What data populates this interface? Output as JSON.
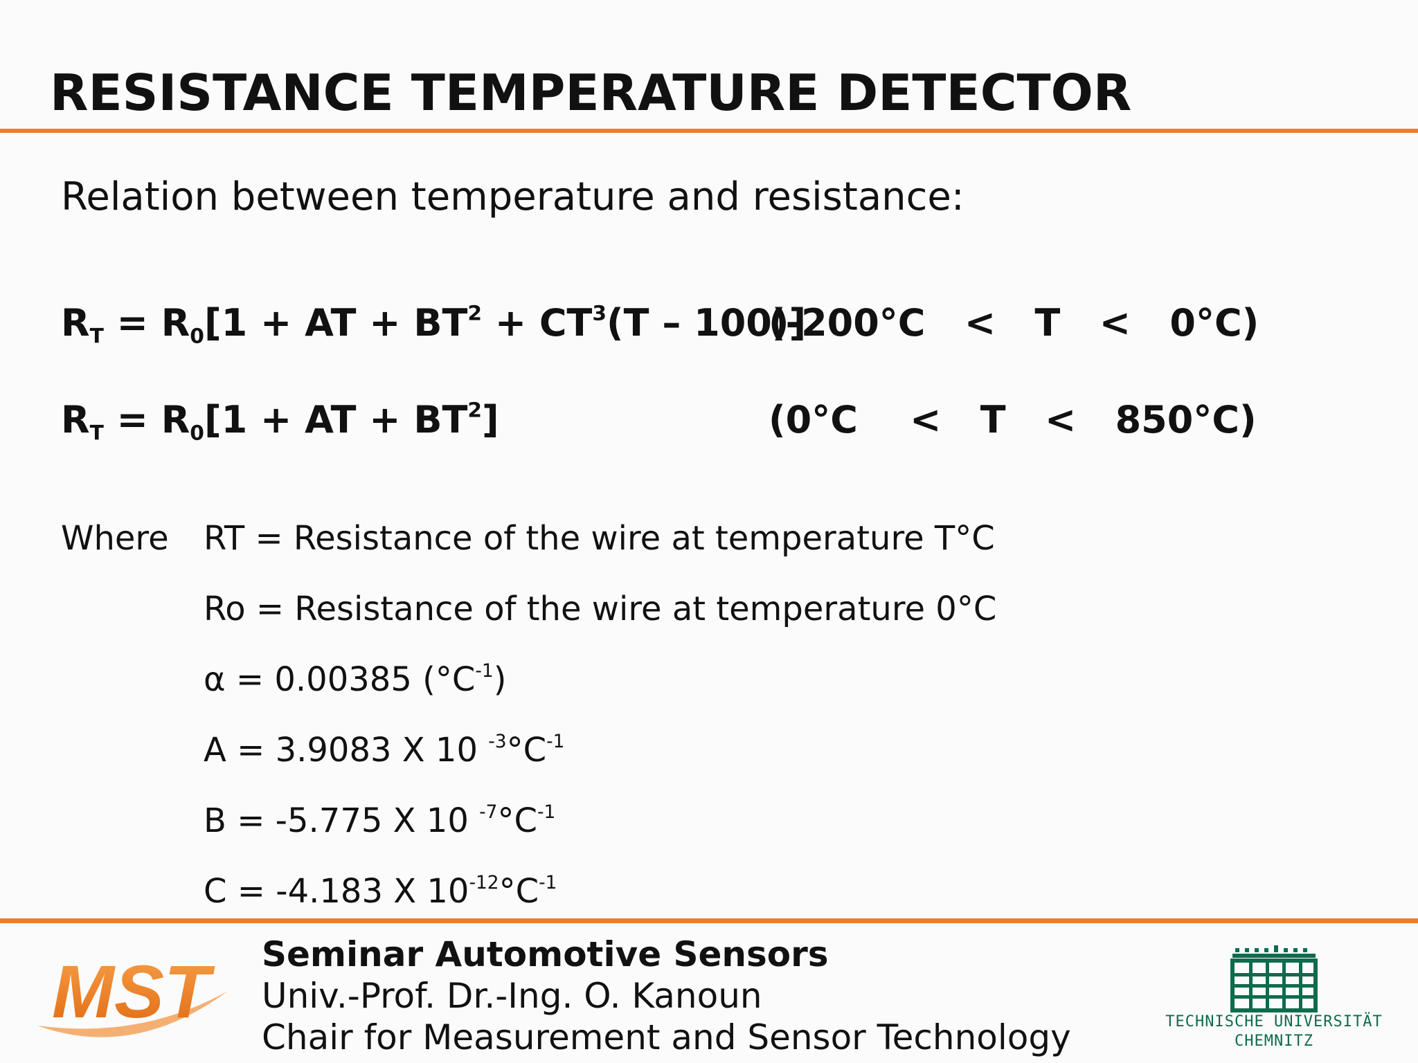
{
  "slide": {
    "title": "RESISTANCE TEMPERATURE DETECTOR",
    "intro": "Relation between temperature and resistance:"
  },
  "equations": [
    {
      "lhs": "R",
      "lhs_sub": "T",
      "eq": " = R",
      "r0_sub": "0",
      "body_a": "[1 + AT + BT",
      "sup_a": "2",
      "body_b": " + CT",
      "sup_b": "3",
      "body_c": "(T – 100)]",
      "range": "(-200°C   <   T   <   0°C)"
    },
    {
      "lhs": "R",
      "lhs_sub": "T",
      "eq": " = R",
      "r0_sub": "0",
      "body_a": "[1 + AT + BT",
      "sup_a": "2",
      "body_c": "]",
      "range": "(0°C    <   T   <   850°C)"
    }
  ],
  "definitions": {
    "where_label": "Where",
    "rt": "RT = Resistance of the wire at temperature T°C",
    "ro": "Ro = Resistance of the wire at temperature 0°C",
    "alpha": {
      "text": "α = 0.00385  (°C",
      "sup": "-1",
      "close": ")"
    },
    "A": {
      "text": "A = 3.9083 X 10 ",
      "sup1": "-3",
      "unit": "°C",
      "sup2": "-1"
    },
    "B": {
      "text": "B = -5.775 X 10 ",
      "sup1": "-7",
      "unit": "°C",
      "sup2": "-1"
    },
    "C": {
      "text": "C = -4.183 X 10",
      "sup1": "-12",
      "unit": "°C",
      "sup2": "-1"
    }
  },
  "footer": {
    "line1": "Seminar Automotive Sensors",
    "line2": "Univ.-Prof. Dr.-Ing. O. Kanoun",
    "line3": "Chair for Measurement and Sensor Technology",
    "logo_left_text": "MST",
    "logo_right_line1": "TECHNISCHE UNIVERSITÄT",
    "logo_right_line2": "CHEMNITZ"
  },
  "colors": {
    "accent": "#f07c28",
    "tuc_green": "#0f6b4e"
  }
}
